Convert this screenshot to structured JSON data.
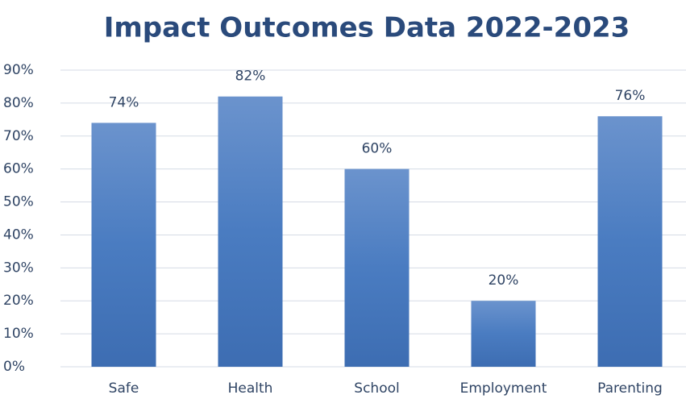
{
  "chart_data": {
    "type": "bar",
    "title": "Impact Outcomes Data 2022-2023",
    "categories": [
      "Safe",
      "Health",
      "School",
      "Employment",
      "Parenting"
    ],
    "values": [
      74,
      82,
      60,
      20,
      76
    ],
    "value_labels": [
      "74%",
      "82%",
      "60%",
      "20%",
      "76%"
    ],
    "color": "#4a7cc1",
    "ylim": [
      0,
      90
    ],
    "yticks": [
      {
        "value": 0,
        "label": "0%"
      },
      {
        "value": 10,
        "label": "10%"
      },
      {
        "value": 20,
        "label": "20%"
      },
      {
        "value": 30,
        "label": "30%"
      },
      {
        "value": 40,
        "label": "40%"
      },
      {
        "value": 50,
        "label": "50%"
      },
      {
        "value": 60,
        "label": "60%"
      },
      {
        "value": 70,
        "label": "70%"
      },
      {
        "value": 80,
        "label": "80%"
      },
      {
        "value": 90,
        "label": "90%"
      }
    ],
    "grid": true
  }
}
